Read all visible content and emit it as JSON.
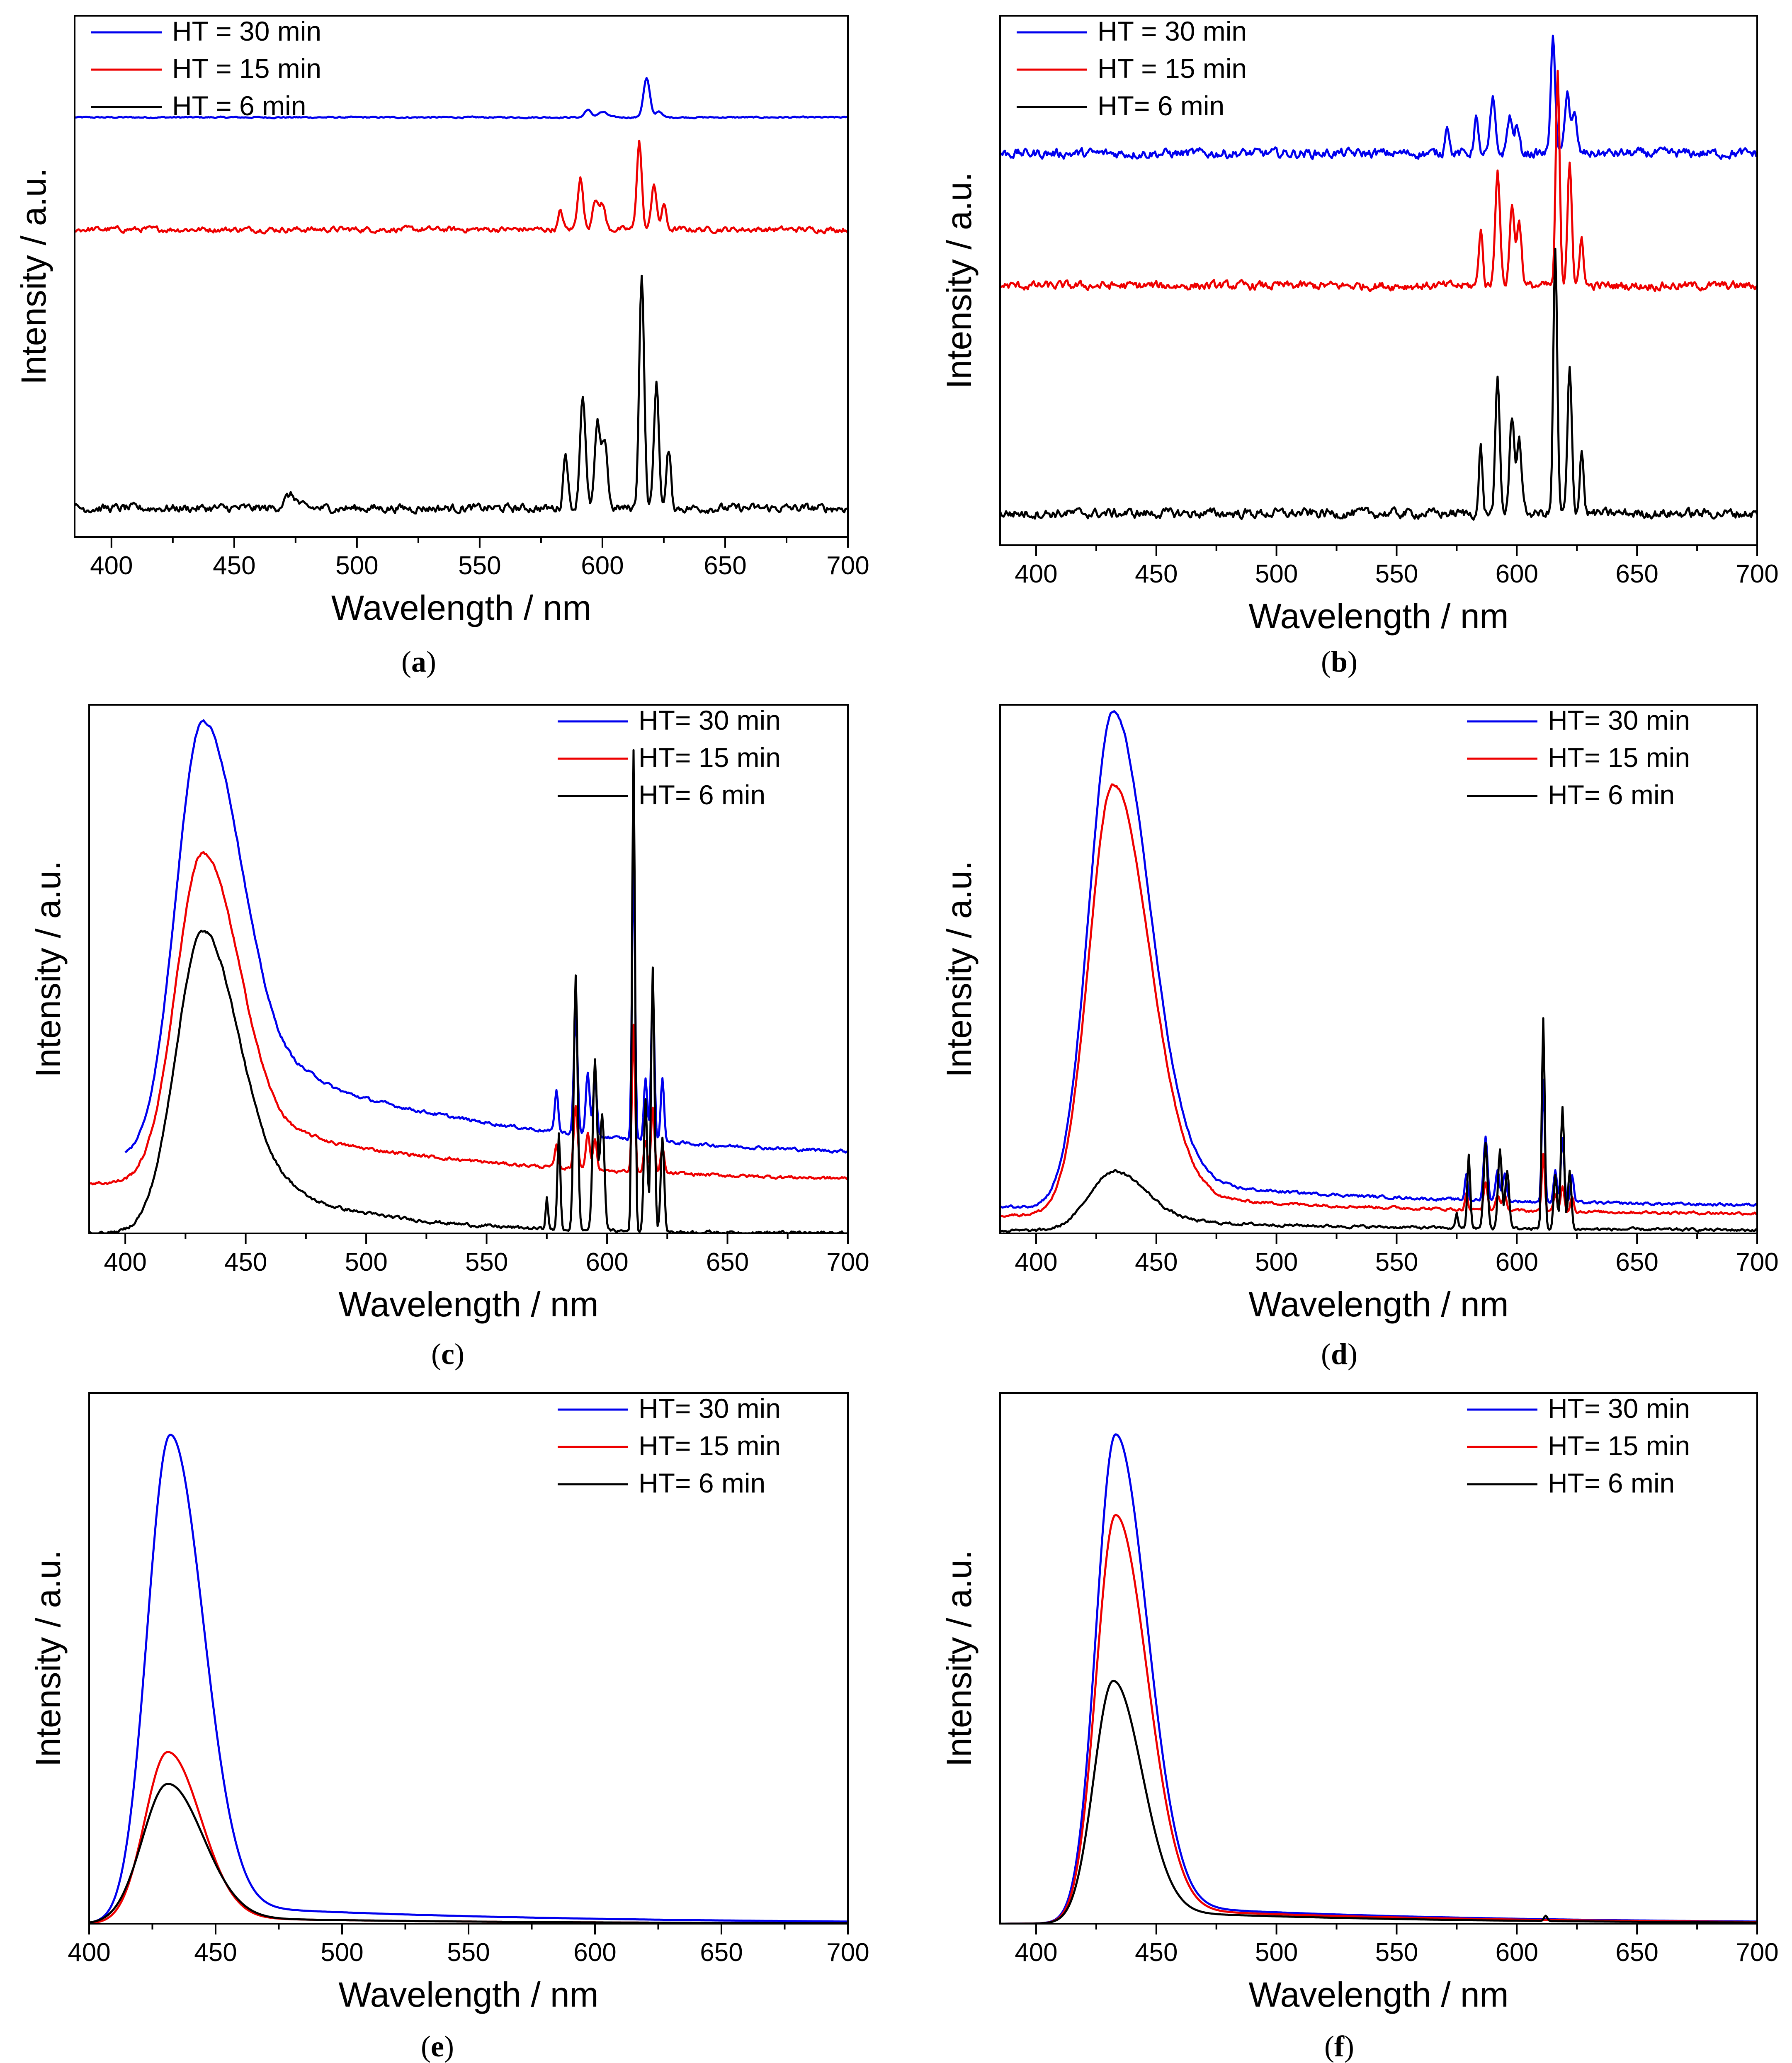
{
  "colors": {
    "blue": "#0000ee",
    "red": "#ee0000",
    "black": "#000000"
  },
  "chart_data": [
    {
      "panel": "(a)",
      "label_letter": "a",
      "type": "line",
      "xlabel": "Wavelength / nm",
      "ylabel": "Intensity / a.u.",
      "xlim": [
        385,
        700
      ],
      "ylim": [
        0,
        100
      ],
      "xticks": [
        400,
        450,
        500,
        550,
        600,
        650,
        700
      ],
      "legend_position": "top-left",
      "series": [
        {
          "name": "HT = 30 min",
          "color": "blue",
          "kind": "lines",
          "baseline": 80.5,
          "noise": 0.15,
          "peaks": [
            [
              594,
              1.5,
              1.2
            ],
            [
              600,
              1.0,
              2.0
            ],
            [
              618,
              7.5,
              1.3
            ],
            [
              623,
              1.2,
              1.2
            ]
          ]
        },
        {
          "name": "HT = 15 min",
          "color": "red",
          "kind": "lines",
          "baseline": 59,
          "noise": 0.6,
          "peaks": [
            [
              583,
              3.5,
              0.9
            ],
            [
              591,
              10,
              1.1
            ],
            [
              597,
              6,
              1.1
            ],
            [
              600,
              5,
              1.1
            ],
            [
              615,
              17,
              1.0
            ],
            [
              621,
              9,
              1.0
            ],
            [
              625,
              5,
              0.9
            ]
          ]
        },
        {
          "name": "HT = 6 min",
          "color": "black",
          "kind": "lines",
          "baseline": 5.5,
          "noise": 0.9,
          "peaks": [
            [
              473,
              2.5,
              2.5
            ],
            [
              585,
              11,
              0.9
            ],
            [
              592,
              22,
              1.1
            ],
            [
              598,
              16,
              1.1
            ],
            [
              601,
              13,
              1.1
            ],
            [
              616,
              45,
              1.0
            ],
            [
              622,
              24,
              1.0
            ],
            [
              627,
              11,
              0.9
            ]
          ]
        }
      ]
    },
    {
      "panel": "(b)",
      "label_letter": "b",
      "type": "line",
      "xlabel": "Wavelength / nm",
      "ylabel": "Intensity / a.u.",
      "xlim": [
        385,
        700
      ],
      "ylim": [
        0,
        100
      ],
      "xticks": [
        400,
        450,
        500,
        550,
        600,
        650,
        700
      ],
      "legend_position": "top-left",
      "series": [
        {
          "name": "HT = 30 min",
          "color": "blue",
          "kind": "lines",
          "baseline": 74,
          "noise": 1.0,
          "peaks": [
            [
              571,
              6,
              0.8
            ],
            [
              583,
              7,
              0.8
            ],
            [
              590,
              10,
              1.0
            ],
            [
              597,
              7,
              1.0
            ],
            [
              600,
              5,
              1.0
            ],
            [
              615,
              22,
              0.9
            ],
            [
              621,
              12,
              1.0
            ],
            [
              624,
              7,
              1.0
            ]
          ]
        },
        {
          "name": "HT = 15 min",
          "color": "red",
          "kind": "lines",
          "baseline": 49,
          "noise": 0.9,
          "peaks": [
            [
              585,
              11,
              0.8
            ],
            [
              592,
              22,
              1.0
            ],
            [
              598,
              15,
              1.0
            ],
            [
              601,
              12,
              1.0
            ],
            [
              617,
              40,
              0.8
            ],
            [
              622,
              24,
              0.9
            ],
            [
              627,
              9,
              0.8
            ]
          ]
        },
        {
          "name": "HT= 6 min",
          "color": "black",
          "kind": "lines",
          "baseline": 6,
          "noise": 1.0,
          "peaks": [
            [
              585,
              13,
              0.7
            ],
            [
              592,
              25,
              0.9
            ],
            [
              598,
              18,
              1.0
            ],
            [
              601,
              14,
              1.0
            ],
            [
              616,
              50,
              0.8
            ],
            [
              622,
              27,
              0.9
            ],
            [
              627,
              12,
              0.8
            ]
          ]
        }
      ]
    },
    {
      "panel": "(c)",
      "label_letter": "c",
      "type": "line",
      "xlabel": "Wavelength / nm",
      "ylabel": "Intensity / a.u.",
      "xlim": [
        385,
        700
      ],
      "ylim": [
        0,
        100
      ],
      "xticks": [
        400,
        450,
        500,
        550,
        600,
        650,
        700
      ],
      "legend_position": "top-right",
      "series": [
        {
          "name": "HT= 30 min",
          "color": "blue",
          "kind": "broad",
          "start": 400,
          "noise": 0.35,
          "broad": [
            [
              432,
              82,
              11,
              17
            ]
          ],
          "tail": [
            14,
            100,
            480
          ],
          "floor": 14,
          "peaks": [
            [
              579,
              8,
              0.7
            ],
            [
              587,
              22,
              0.8
            ],
            [
              592,
              12,
              0.8
            ],
            [
              595,
              10,
              0.8
            ],
            [
              611,
              55,
              0.6
            ],
            [
              616,
              12,
              0.7
            ],
            [
              619,
              28,
              0.7
            ],
            [
              623,
              12,
              0.7
            ]
          ]
        },
        {
          "name": "HT= 15 min",
          "color": "red",
          "kind": "broad",
          "noise": 0.35,
          "broad": [
            [
              432,
              62,
              11,
              16
            ]
          ],
          "tail": [
            8,
            100,
            480
          ],
          "floor": 9.5,
          "peaks": [
            [
              579,
              4,
              0.7
            ],
            [
              587,
              12,
              0.8
            ],
            [
              592,
              7,
              0.8
            ],
            [
              595,
              6,
              0.8
            ],
            [
              611,
              28,
              0.6
            ],
            [
              616,
              6,
              0.7
            ],
            [
              619,
              12,
              0.7
            ],
            [
              623,
              5,
              0.7
            ]
          ]
        },
        {
          "name": "HT= 6 min",
          "color": "black",
          "kind": "broad",
          "noise": 0.35,
          "broad": [
            [
              432,
              56,
              11,
              15
            ]
          ],
          "tail": [
            7,
            50,
            470
          ],
          "floor": 0,
          "peaks": [
            [
              575,
              6,
              0.5
            ],
            [
              580,
              18,
              0.6
            ],
            [
              587,
              48,
              0.8
            ],
            [
              595,
              32,
              0.9
            ],
            [
              598,
              22,
              0.9
            ],
            [
              611,
              91,
              0.6
            ],
            [
              616,
              25,
              0.7
            ],
            [
              619,
              50,
              0.7
            ],
            [
              623,
              18,
              0.7
            ]
          ]
        }
      ]
    },
    {
      "panel": "(d)",
      "label_letter": "d",
      "type": "line",
      "xlabel": "Wavelength / nm",
      "ylabel": "Intensity / a.u.",
      "xlim": [
        385,
        700
      ],
      "ylim": [
        0,
        100
      ],
      "xticks": [
        400,
        450,
        500,
        550,
        600,
        650,
        700
      ],
      "legend_position": "top-right",
      "series": [
        {
          "name": "HT= 30 min",
          "color": "blue",
          "kind": "broad",
          "noise": 0.3,
          "broad": [
            [
              432,
              93,
              10,
              15
            ]
          ],
          "tail": [
            4,
            100,
            470
          ],
          "floor": 5,
          "peaks": [
            [
              579,
              5,
              0.6
            ],
            [
              587,
              12,
              0.8
            ],
            [
              592,
              6,
              0.8
            ],
            [
              595,
              5,
              0.8
            ],
            [
              611,
              23,
              0.6
            ],
            [
              616,
              6,
              0.7
            ],
            [
              619,
              12,
              0.7
            ],
            [
              623,
              5,
              0.7
            ]
          ]
        },
        {
          "name": "HT= 15 min",
          "color": "red",
          "kind": "broad",
          "noise": 0.3,
          "broad": [
            [
              432,
              81,
              10,
              15
            ]
          ],
          "tail": [
            3,
            100,
            470
          ],
          "floor": 3.5,
          "peaks": [
            [
              579,
              3,
              0.6
            ],
            [
              587,
              5,
              0.8
            ],
            [
              592,
              3,
              0.8
            ],
            [
              595,
              3,
              0.8
            ],
            [
              611,
              11,
              0.6
            ],
            [
              616,
              3,
              0.7
            ],
            [
              619,
              5,
              0.7
            ],
            [
              623,
              3,
              0.7
            ]
          ]
        },
        {
          "name": "HT= 6 min",
          "color": "black",
          "kind": "broad",
          "noise": 0.3,
          "broad": [
            [
              432,
              11,
              10,
              14
            ]
          ],
          "tail": [
            1.5,
            100,
            470
          ],
          "floor": 0.5,
          "peaks": [
            [
              575,
              3,
              0.5
            ],
            [
              580,
              14,
              0.6
            ],
            [
              587,
              16,
              0.8
            ],
            [
              593,
              15,
              0.8
            ],
            [
              596,
              11,
              0.8
            ],
            [
              611,
              40,
              0.6
            ],
            [
              616,
              10,
              0.7
            ],
            [
              619,
              23,
              0.7
            ],
            [
              622,
              11,
              0.7
            ]
          ]
        }
      ]
    },
    {
      "panel": "(e)",
      "label_letter": "e",
      "type": "line",
      "xlabel": "Wavelength / nm",
      "ylabel": "Intensity / a.u.",
      "xlim": [
        400,
        700
      ],
      "ylim": [
        0,
        100
      ],
      "xticks": [
        400,
        450,
        500,
        550,
        600,
        650,
        700
      ],
      "legend_position": "top-right",
      "series": [
        {
          "name": "HT= 30 min",
          "color": "blue",
          "kind": "broad",
          "noise": 0,
          "broad": [
            [
              432,
              91,
              9,
              13
            ]
          ],
          "tail": [
            3,
            120,
            460
          ],
          "floor": 0,
          "peaks": []
        },
        {
          "name": "HT= 15 min",
          "color": "red",
          "kind": "broad",
          "noise": 0,
          "broad": [
            [
              431,
              32,
              9,
              13
            ]
          ],
          "tail": [
            1,
            100,
            460
          ],
          "floor": 0,
          "peaks": []
        },
        {
          "name": "HT= 6 min",
          "color": "black",
          "kind": "broad",
          "noise": 0,
          "broad": [
            [
              431,
              26,
              10,
              14
            ]
          ],
          "tail": [
            1,
            100,
            460
          ],
          "floor": 0,
          "peaks": []
        }
      ]
    },
    {
      "panel": "(f)",
      "label_letter": "f",
      "type": "line",
      "xlabel": "Wavelength / nm",
      "ylabel": "Intensity / a.u.",
      "xlim": [
        385,
        700
      ],
      "ylim": [
        0,
        100
      ],
      "xticks": [
        400,
        450,
        500,
        550,
        600,
        650,
        700
      ],
      "legend_position": "top-right",
      "series": [
        {
          "name": "HT= 30 min",
          "color": "blue",
          "kind": "broad",
          "noise": 0,
          "broad": [
            [
              433,
              91,
              8,
              13
            ]
          ],
          "tail": [
            3,
            120,
            460
          ],
          "floor": 0,
          "peaks": []
        },
        {
          "name": "HT= 15 min",
          "color": "red",
          "kind": "broad",
          "noise": 0,
          "broad": [
            [
              433,
              76,
              8,
              13
            ]
          ],
          "tail": [
            2.5,
            120,
            460
          ],
          "floor": 0,
          "peaks": []
        },
        {
          "name": "HT= 6 min",
          "color": "black",
          "kind": "broad",
          "noise": 0,
          "broad": [
            [
              432,
              45,
              8,
              12
            ]
          ],
          "tail": [
            2,
            110,
            460
          ],
          "floor": 0,
          "peaks": [
            [
              612,
              1,
              0.7
            ]
          ]
        }
      ]
    }
  ]
}
